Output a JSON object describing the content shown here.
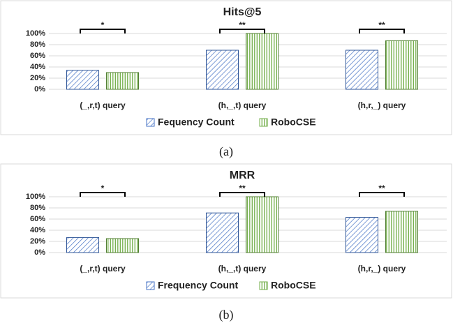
{
  "chart_data": [
    {
      "type": "bar",
      "title": "Hits@5",
      "caption": "(a)",
      "categories": [
        "(_,r,t) query",
        "(h,_,t) query",
        "(h,r,_) query"
      ],
      "series": [
        {
          "name": "Fequency Count",
          "color": "#4472c4",
          "values": [
            34,
            70,
            70
          ]
        },
        {
          "name": "RoboCSE",
          "color": "#70ad47",
          "values": [
            30,
            100,
            87
          ]
        }
      ],
      "annotations": [
        "*",
        "**",
        "**"
      ],
      "ylim": [
        0,
        100
      ],
      "yticks": [
        {
          "value": 0,
          "label": "0%"
        },
        {
          "value": 20,
          "label": "20%"
        },
        {
          "value": 40,
          "label": "40%"
        },
        {
          "value": 60,
          "label": "60%"
        },
        {
          "value": 80,
          "label": "80%"
        },
        {
          "value": 100,
          "label": "100%"
        }
      ],
      "grid": true,
      "legend": "bottom"
    },
    {
      "type": "bar",
      "title": "MRR",
      "caption": "(b)",
      "categories": [
        "(_,r,t) query",
        "(h,_,t) query",
        "(h,r,_) query"
      ],
      "series": [
        {
          "name": "Frequency Count",
          "color": "#4472c4",
          "values": [
            27,
            71,
            63
          ]
        },
        {
          "name": "RoboCSE",
          "color": "#70ad47",
          "values": [
            25,
            100,
            74
          ]
        }
      ],
      "annotations": [
        "*",
        "**",
        "**"
      ],
      "ylim": [
        0,
        100
      ],
      "yticks": [
        {
          "value": 0,
          "label": "0%"
        },
        {
          "value": 20,
          "label": "20%"
        },
        {
          "value": 40,
          "label": "40%"
        },
        {
          "value": 60,
          "label": "60%"
        },
        {
          "value": 80,
          "label": "80%"
        },
        {
          "value": 100,
          "label": "100%"
        }
      ],
      "grid": true,
      "legend": "bottom"
    }
  ]
}
